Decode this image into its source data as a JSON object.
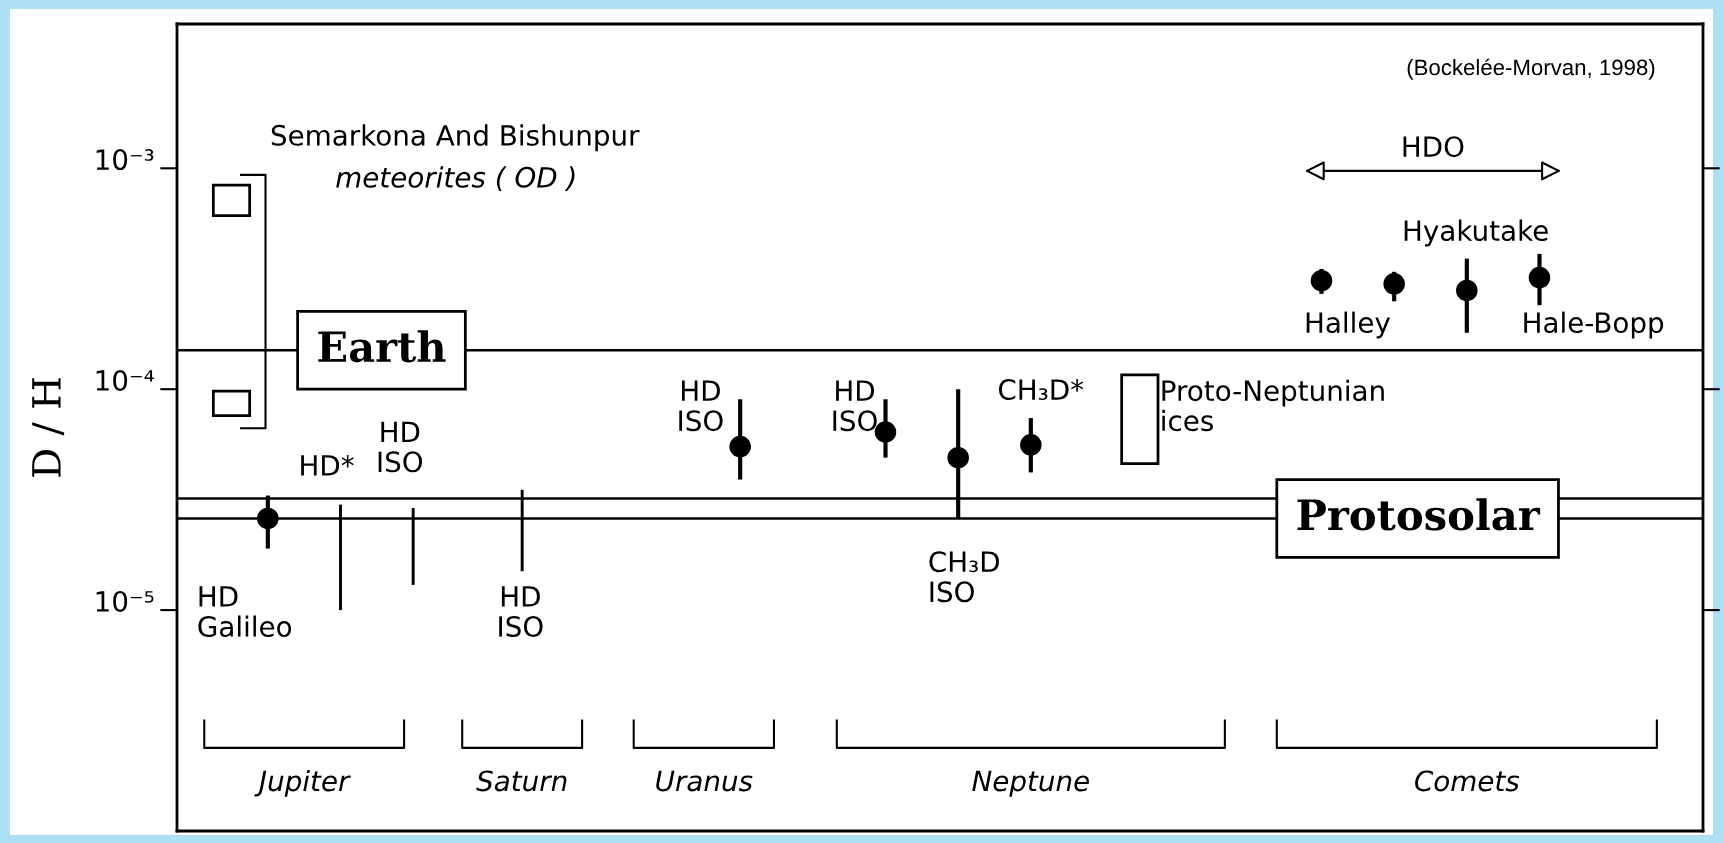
{
  "chart_data": {
    "type": "scatter",
    "ylabel": "D / H",
    "log": "y",
    "ylim": [
      1e-06,
      0.0045
    ],
    "yticks": [
      {
        "value": 1e-05,
        "label": "10⁻⁵"
      },
      {
        "value": 0.0001,
        "label": "10⁻⁴"
      },
      {
        "value": 0.001,
        "label": "10⁻³"
      }
    ],
    "categories": [
      null,
      null,
      null,
      "Jupiter",
      null,
      null,
      null,
      null,
      null,
      "Saturn",
      null,
      null,
      null,
      null,
      "Uranus",
      null,
      null,
      null,
      null,
      null,
      null,
      null,
      null,
      "Neptune",
      null,
      null,
      null,
      null,
      null,
      null,
      null,
      null,
      null,
      null,
      null,
      "Comets",
      null,
      null,
      null,
      null,
      null,
      null
    ],
    "series": [
      {
        "type": "scatter",
        "marker": "circle",
        "color": "#000000",
        "values": [
          null,
          null,
          2.6e-05,
          null,
          null,
          null,
          null,
          null,
          null,
          null,
          null,
          null,
          null,
          null,
          null,
          5.5e-05,
          null,
          null,
          null,
          6.4e-05,
          null,
          4.9e-05,
          null,
          5.6e-05,
          null,
          null,
          null,
          null,
          null,
          null,
          null,
          0.00031,
          null,
          0.0003,
          null,
          0.00028,
          null,
          0.00032,
          null,
          null,
          null,
          null
        ],
        "errors": [
          null,
          null,
          [
            1.9e-05,
            3.3e-05
          ],
          null,
          null,
          null,
          null,
          null,
          null,
          null,
          null,
          null,
          null,
          null,
          null,
          [
            3.9e-05,
            9e-05
          ],
          null,
          null,
          null,
          [
            4.9e-05,
            9e-05
          ],
          null,
          [
            2.6e-05,
            0.0001
          ],
          null,
          [
            4.2e-05,
            7.4e-05
          ],
          null,
          null,
          null,
          null,
          null,
          null,
          null,
          [
            0.00027,
            0.00035
          ],
          null,
          [
            0.00025,
            0.00034
          ],
          null,
          [
            0.00018,
            0.00039
          ],
          null,
          [
            0.00024,
            0.00041
          ],
          null,
          null,
          null,
          null
        ]
      },
      {
        "type": "bar",
        "color": "#000000",
        "values": [
          null,
          null,
          null,
          null,
          2e-05,
          null,
          1.6e-05,
          null,
          null,
          2e-05,
          null,
          null,
          null,
          null,
          null,
          null,
          null,
          null,
          null,
          null,
          null,
          null,
          null,
          null,
          null,
          null,
          null,
          null,
          null,
          null,
          null,
          null,
          null,
          null,
          null,
          null,
          null,
          null,
          null,
          null,
          null,
          null
        ],
        "base": [
          null,
          null,
          null,
          null,
          1e-05,
          null,
          1.3e-05,
          null,
          null,
          1.5e-05,
          null,
          null,
          null,
          null,
          null,
          null,
          null,
          null,
          null,
          null,
          null,
          null,
          null,
          null,
          null,
          null,
          null,
          null,
          null,
          null,
          null,
          null,
          null,
          null,
          null,
          null,
          null,
          null,
          null,
          null,
          null,
          null
        ]
      },
      {
        "type": "bar",
        "color": "#ffffff",
        "values": [
          null,
          0.00023,
          null,
          null,
          null,
          null,
          null,
          null,
          null,
          null,
          null,
          null,
          null,
          null,
          null,
          null,
          null,
          null,
          null,
          null,
          null,
          null,
          null,
          null,
          null,
          null,
          7e-05,
          null,
          null,
          null,
          null,
          null,
          null,
          null,
          null,
          null,
          null,
          null,
          null,
          null,
          null,
          null
        ],
        "base": [
          null,
          0.00061,
          null,
          null,
          null,
          null,
          null,
          null,
          null,
          null,
          null,
          null,
          null,
          null,
          null,
          null,
          null,
          null,
          null,
          null,
          null,
          null,
          null,
          null,
          null,
          null,
          4.6e-05,
          null,
          null,
          null,
          null,
          null,
          null,
          null,
          null,
          null,
          null,
          null,
          null,
          null,
          null,
          null
        ]
      },
      {
        "type": "bar",
        "color": "#ffffff",
        "values": [
          null,
          2.2e-05,
          null,
          null,
          null,
          null,
          null,
          null,
          null,
          null,
          null,
          null,
          null,
          null,
          null,
          null,
          null,
          null,
          null,
          null,
          null,
          null,
          null,
          null,
          null,
          null,
          null,
          null,
          null,
          null,
          null,
          null,
          null,
          null,
          null,
          null,
          null,
          null,
          null,
          null,
          null,
          null
        ],
        "base": [
          null,
          7.6e-05,
          null,
          null,
          null,
          null,
          null,
          null,
          null,
          null,
          null,
          null,
          null,
          null,
          null,
          null,
          null,
          null,
          null,
          null,
          null,
          null,
          null,
          null,
          null,
          null,
          null,
          null,
          null,
          null,
          null,
          null,
          null,
          null,
          null,
          null,
          null,
          null,
          null,
          null,
          null,
          null
        ]
      }
    ],
    "ref_lines": [
      {
        "axis": "y",
        "value": 0.00015,
        "label": "Earth"
      },
      {
        "axis": "y",
        "value": 2.6e-05,
        "label": "Protosolar"
      },
      {
        "axis": "y",
        "value": 3.2e-05
      }
    ],
    "annotations": [
      "(Bockelée-Morvan, 1998)",
      "Semarkona And Bishunpur",
      "meteorites ( OD )",
      "HD\nGalileo",
      "HD*",
      "HD\nISO",
      "HD\nISO",
      "HD\nISO",
      "HD\nISO",
      "CH₃D\nISO",
      "CH₃D*",
      "Proto-Neptunian\nices",
      "HDO",
      "Hyakutake",
      "Halley",
      "Hale-Bopp"
    ]
  }
}
